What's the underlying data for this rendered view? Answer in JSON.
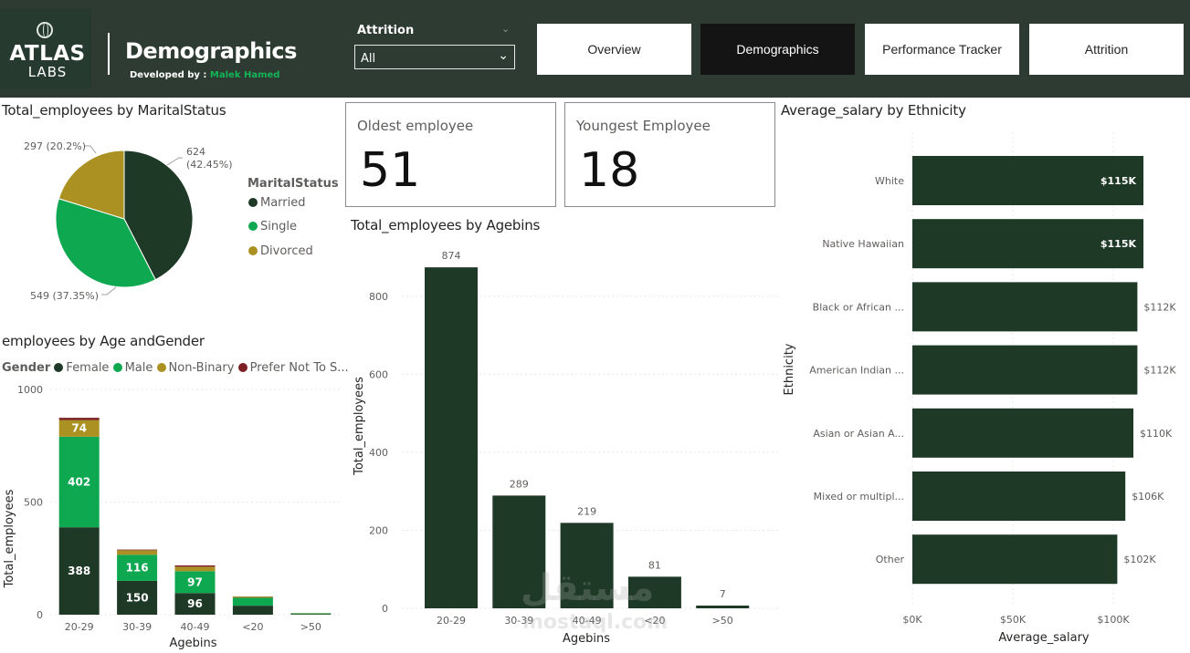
{
  "header": {
    "logo_top": "ATLAS",
    "logo_bottom": "LABS",
    "title": "Demographics",
    "developed_by_label": "Developed by :",
    "developer_name": "Malek Hamed",
    "slicer_label": "Attrition",
    "slicer_value": "All",
    "nav": [
      "Overview",
      "Demographics",
      "Performance Tracker",
      "Attrition"
    ],
    "active_nav": "Demographics"
  },
  "colors": {
    "header_bg": "#2d3b32",
    "dark_green": "#1e3a26",
    "bright_green": "#0ea851",
    "gold": "#ab9122",
    "maroon": "#7b1f24"
  },
  "cards": {
    "oldest_label": "Oldest employee",
    "oldest_value": "51",
    "youngest_label": "Youngest Employee",
    "youngest_value": "18"
  },
  "watermark": {
    "line1": "مستقل",
    "line2": "mostaql.com"
  },
  "chart_data": [
    {
      "id": "marital",
      "type": "pie",
      "title": "Total_employees by MaritalStatus",
      "legend_title": "MaritalStatus",
      "legend_position": "right",
      "slices": [
        {
          "name": "Married",
          "value": 624,
          "label_line1": "624",
          "label_line2": "(42.45%)",
          "color": "#1e3a26"
        },
        {
          "name": "Single",
          "value": 549,
          "label_line1": "549 (37.35%)",
          "label_line2": "",
          "color": "#0ea851"
        },
        {
          "name": "Divorced",
          "value": 297,
          "label_line1": "297 (20.2%)",
          "label_line2": "",
          "color": "#ab9122"
        }
      ]
    },
    {
      "id": "age_gender",
      "type": "bar",
      "stacked": true,
      "title": "employees by Age andGender",
      "legend_title": "Gender",
      "legend_position": "top-left",
      "xlabel": "Agebins",
      "ylabel": "Total_employees",
      "ylim": [
        0,
        1000
      ],
      "yticks": [
        0,
        500,
        1000
      ],
      "categories": [
        "20-29",
        "30-39",
        "40-49",
        "<20",
        ">50"
      ],
      "series": [
        {
          "name": "Female",
          "color": "#1e3a26",
          "values": [
            388,
            150,
            96,
            40,
            3
          ],
          "labels": [
            "388",
            "150",
            "96",
            "",
            ""
          ]
        },
        {
          "name": "Male",
          "color": "#0ea851",
          "values": [
            402,
            116,
            97,
            35,
            3
          ],
          "labels": [
            "402",
            "116",
            "97",
            "",
            ""
          ]
        },
        {
          "name": "Non-Binary",
          "color": "#ab9122",
          "values": [
            74,
            20,
            20,
            5,
            1
          ],
          "labels": [
            "74",
            "",
            "",
            "",
            ""
          ]
        },
        {
          "name": "Prefer Not To S...",
          "color": "#7b1f24",
          "values": [
            10,
            3,
            6,
            1,
            0
          ],
          "labels": [
            "",
            "",
            "",
            "",
            ""
          ]
        }
      ]
    },
    {
      "id": "agebins",
      "type": "bar",
      "title": "Total_employees by Agebins",
      "xlabel": "Agebins",
      "ylabel": "Total_employees",
      "ylim": [
        0,
        900
      ],
      "yticks": [
        0,
        200,
        400,
        600,
        800
      ],
      "categories": [
        "20-29",
        "30-39",
        "40-49",
        "<20",
        ">50"
      ],
      "values": [
        874,
        289,
        219,
        81,
        7
      ],
      "color": "#1e3a26"
    },
    {
      "id": "salary",
      "type": "bar",
      "orientation": "horizontal",
      "title": "Average_salary by Ethnicity",
      "xlabel": "Average_salary",
      "ylabel": "Ethnicity",
      "xlim": [
        0,
        115000
      ],
      "xticks": [
        0,
        50000,
        100000
      ],
      "xtick_labels": [
        "$0K",
        "$50K",
        "$100K"
      ],
      "categories": [
        "White",
        "Native Hawaiian",
        "Black or African ...",
        "American Indian ...",
        "Asian or Asian A...",
        "Mixed or multipl...",
        "Other"
      ],
      "values": [
        115000,
        115000,
        112000,
        112000,
        110000,
        106000,
        102000
      ],
      "labels": [
        "$115K",
        "$115K",
        "$112K",
        "$112K",
        "$110K",
        "$106K",
        "$102K"
      ],
      "color": "#1e3a26"
    }
  ]
}
